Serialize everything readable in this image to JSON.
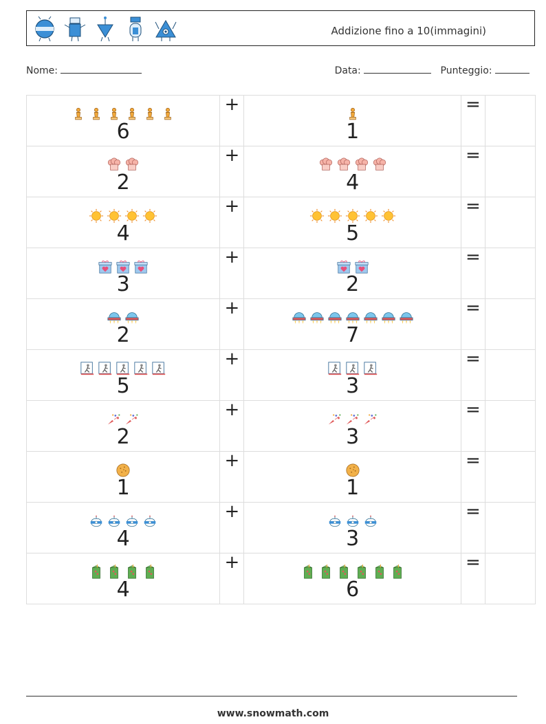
{
  "header": {
    "title": "Addizione fino a 10(immagini)",
    "robot_icons": [
      "robot-round-icon",
      "robot-tall-icon",
      "robot-triangle-icon",
      "robot-capsule-icon",
      "robot-eye-icon"
    ]
  },
  "info": {
    "name_label": "Nome:",
    "date_label": "Data:",
    "score_label": "Punteggio:"
  },
  "plus_sign": "+",
  "equals_sign": "=",
  "rows": [
    {
      "icon": "chess-pawn-icon",
      "left": "6",
      "left_count": 6,
      "right": "1",
      "right_count": 1
    },
    {
      "icon": "chef-hat-icon",
      "left": "2",
      "left_count": 2,
      "right": "4",
      "right_count": 4
    },
    {
      "icon": "sun-icon",
      "left": "4",
      "left_count": 4,
      "right": "5",
      "right_count": 5
    },
    {
      "icon": "gift-box-icon",
      "left": "3",
      "left_count": 3,
      "right": "2",
      "right_count": 2
    },
    {
      "icon": "ufo-icon",
      "left": "2",
      "left_count": 2,
      "right": "7",
      "right_count": 7
    },
    {
      "icon": "exit-sign-icon",
      "left": "5",
      "left_count": 5,
      "right": "3",
      "right_count": 3
    },
    {
      "icon": "party-popper-icon",
      "left": "2",
      "left_count": 2,
      "right": "3",
      "right_count": 3
    },
    {
      "icon": "cookie-icon",
      "left": "1",
      "left_count": 1,
      "right": "1",
      "right_count": 1
    },
    {
      "icon": "robot-head-icon",
      "left": "4",
      "left_count": 4,
      "right": "3",
      "right_count": 3
    },
    {
      "icon": "juice-box-icon",
      "left": "4",
      "left_count": 4,
      "right": "6",
      "right_count": 6
    }
  ],
  "footer": {
    "website": "www.snowmath.com"
  },
  "colors": {
    "pawn": "#f2a93b",
    "chef_hat": "#f6b3a8",
    "sun": "#ffc234",
    "gift": "#9ec9ee",
    "heart": "#e8507a",
    "ufo": "#7cc6ec",
    "juice": "#5fae52",
    "robot_blue": "#3b8fd6"
  }
}
